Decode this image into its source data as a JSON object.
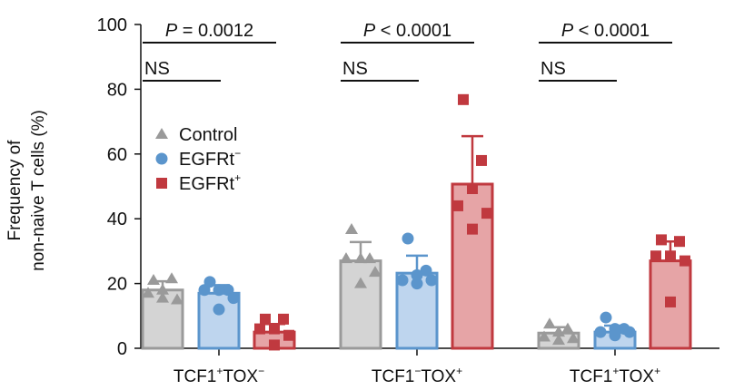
{
  "chart_data": {
    "type": "bar",
    "ylabel_lines": [
      "Frequency of",
      "non-naive T cells (%)"
    ],
    "ylim": [
      0,
      100
    ],
    "yticks": [
      0,
      20,
      40,
      60,
      80,
      100
    ],
    "categories": [
      {
        "main1": "TCF1",
        "sup1": "+",
        "main2": "TOX",
        "sup2": "−"
      },
      {
        "main1": "TCF1",
        "sup1": "−",
        "main2": "TOX",
        "sup2": "+"
      },
      {
        "main1": "TCF1",
        "sup1": "+",
        "main2": "TOX",
        "sup2": "+"
      }
    ],
    "series": [
      {
        "name": "Control",
        "marker": "triangle",
        "color": "#9a9a9a",
        "fill": "#cfcfcf",
        "means": [
          18,
          27,
          4.7
        ],
        "err_top": [
          20.7,
          32.8,
          6.5
        ],
        "points": [
          [
            21,
            21.5,
            18,
            17,
            15,
            15.5
          ],
          [
            36.7,
            27.7,
            27.7,
            27.7,
            23.5,
            20
          ],
          [
            7.5,
            6,
            5,
            3.5,
            3,
            2.5
          ]
        ]
      },
      {
        "name": "EGFRt",
        "name_sup": "−",
        "marker": "circle",
        "color": "#5b95cc",
        "fill": "#b7d0ec",
        "means": [
          17,
          23.2,
          5
        ],
        "err_top": [
          19.5,
          28.6,
          7
        ],
        "points": [
          [
            20.5,
            18,
            18,
            18,
            15.5,
            12
          ],
          [
            33.9,
            24,
            22.6,
            21,
            21,
            20
          ],
          [
            9.5,
            6,
            6,
            5,
            5,
            4
          ]
        ]
      },
      {
        "name": "EGFRt",
        "name_sup": "+",
        "marker": "square",
        "color": "#c0393f",
        "fill": "#e39a9c",
        "means": [
          5,
          50.7,
          27
        ],
        "err_top": [
          7.5,
          65.5,
          33
        ],
        "points": [
          [
            9,
            9,
            6,
            6,
            4,
            1
          ],
          [
            76.8,
            58,
            49.3,
            44,
            41.7,
            36.8
          ],
          [
            33.5,
            33,
            28.5,
            28.5,
            27,
            14.3
          ]
        ]
      }
    ],
    "annotations": [
      {
        "p_italic": "P",
        "p_text": " = 0.0012",
        "ns": "NS"
      },
      {
        "p_italic": "P",
        "p_text": " < 0.0001",
        "ns": "NS"
      },
      {
        "p_italic": "P",
        "p_text": " < 0.0001",
        "ns": "NS"
      }
    ],
    "legend_position": "upper-left",
    "grid": false
  }
}
